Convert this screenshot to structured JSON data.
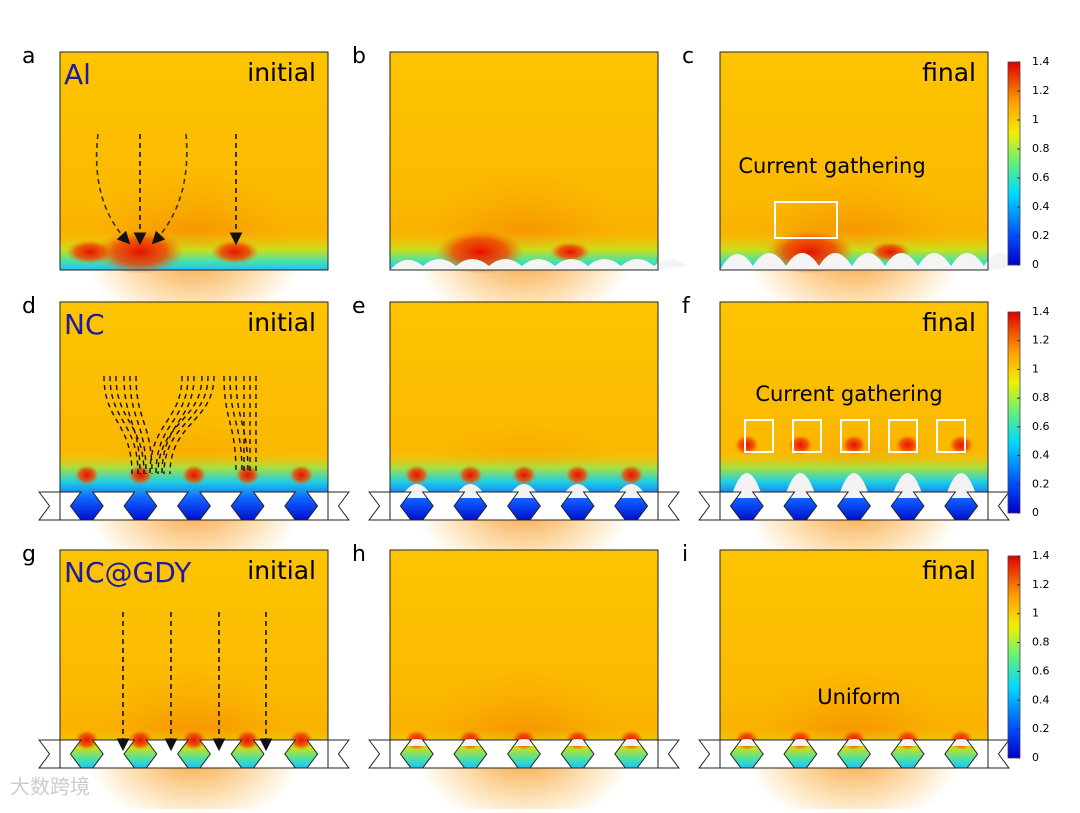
{
  "panels": [
    {
      "letter": "a",
      "material": "Al",
      "stage": "initial"
    },
    {
      "letter": "b"
    },
    {
      "letter": "c",
      "stage": "final",
      "annotation": "Current gathering"
    },
    {
      "letter": "d",
      "material": "NC",
      "stage": "initial"
    },
    {
      "letter": "e"
    },
    {
      "letter": "f",
      "stage": "final",
      "annotation": "Current gathering"
    },
    {
      "letter": "g",
      "material": "NC@GDY",
      "stage": "initial"
    },
    {
      "letter": "h"
    },
    {
      "letter": "i",
      "stage": "final",
      "annotation": "Uniform"
    }
  ],
  "colorbars": [
    {
      "range": [
        0,
        1.4
      ],
      "ticks": [
        0,
        0.2,
        0.4,
        0.6,
        0.8,
        1,
        1.2,
        1.4
      ]
    },
    {
      "range": [
        0,
        1.4
      ],
      "ticks": [
        0,
        0.2,
        0.4,
        0.6,
        0.8,
        1,
        1.2,
        1.4
      ]
    },
    {
      "range": [
        0,
        1.4
      ],
      "ticks": [
        0,
        0.2,
        0.4,
        0.6,
        0.8,
        1,
        1.2,
        1.4
      ]
    }
  ],
  "watermark": "大数跨境"
}
